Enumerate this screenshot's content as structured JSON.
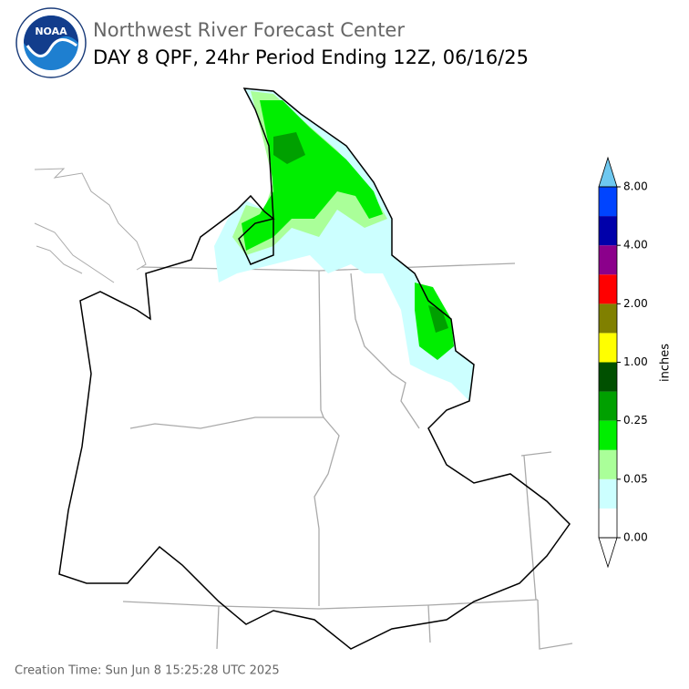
{
  "header": {
    "logo_text": "NOAA",
    "title": "Northwest River Forecast Center",
    "subtitle": "DAY 8 QPF, 24hr Period Ending 12Z, 06/16/25"
  },
  "colorbar": {
    "label": "inches",
    "ticks": [
      {
        "value": 0,
        "label": "0.00"
      },
      {
        "value": 0.05,
        "label": "0.05"
      },
      {
        "value": 0.25,
        "label": "0.25"
      },
      {
        "value": 1,
        "label": "1.00"
      },
      {
        "value": 2,
        "label": "2.00"
      },
      {
        "value": 4,
        "label": "4.00"
      },
      {
        "value": 8,
        "label": "8.00"
      }
    ],
    "colors": [
      "#ffffff",
      "#ccffff",
      "#aaff99",
      "#00ee00",
      "#00a000",
      "#005000",
      "#ffff00",
      "#808000",
      "#ff0000",
      "#8b008b",
      "#0000aa",
      "#0044ff"
    ],
    "under_color": "#ffffff",
    "over_color": "#6ec8f0"
  },
  "footer": "Creation Time: Sun Jun 8 15:25:28 UTC 2025"
}
